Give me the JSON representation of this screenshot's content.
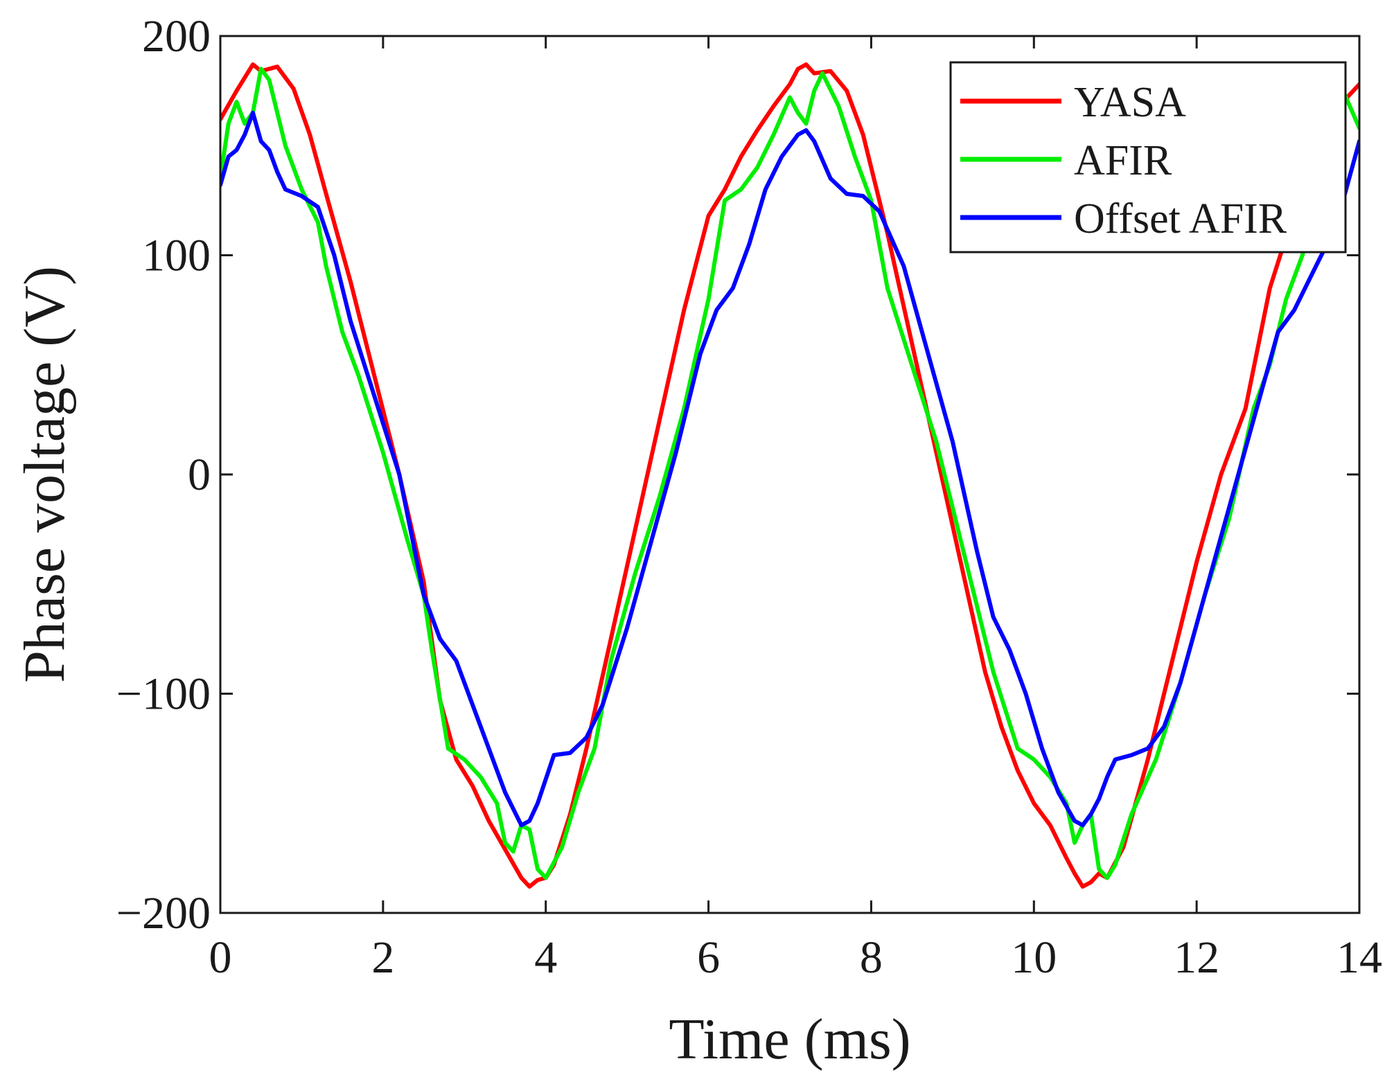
{
  "chart_data": {
    "type": "line",
    "xlabel": "Time (ms)",
    "ylabel": "Phase voltage (V)",
    "xlim": [
      0,
      14
    ],
    "ylim": [
      -200,
      200
    ],
    "xticks": [
      0,
      2,
      4,
      6,
      8,
      10,
      12,
      14
    ],
    "xtick_labels": [
      "0",
      "2",
      "4",
      "6",
      "8",
      "10",
      "12",
      "14"
    ],
    "yticks": [
      -200,
      -100,
      0,
      100,
      200
    ],
    "ytick_labels": [
      "−200",
      "−100",
      "0",
      "100",
      "200"
    ],
    "grid": false,
    "legend_position": "top-right",
    "series": [
      {
        "name": "YASA",
        "color": "#ff0000",
        "x": [
          0,
          0.2,
          0.4,
          0.5,
          0.7,
          0.9,
          1.1,
          1.3,
          1.6,
          1.9,
          2.2,
          2.5,
          2.7,
          2.9,
          3.1,
          3.3,
          3.5,
          3.7,
          3.8,
          3.9,
          4.0,
          4.1,
          4.3,
          4.5,
          4.8,
          5.1,
          5.4,
          5.7,
          6.0,
          6.2,
          6.4,
          6.6,
          6.8,
          7.0,
          7.1,
          7.2,
          7.3,
          7.5,
          7.7,
          7.9,
          8.2,
          8.5,
          8.8,
          9.1,
          9.4,
          9.6,
          9.8,
          10.0,
          10.2,
          10.4,
          10.5,
          10.6,
          10.7,
          10.8,
          10.9,
          11.1,
          11.4,
          11.7,
          12.0,
          12.3,
          12.6,
          12.9,
          13.2,
          13.5,
          13.8,
          14.0
        ],
        "y": [
          162,
          175,
          187,
          184,
          186,
          176,
          155,
          128,
          88,
          44,
          0,
          -49,
          -103,
          -130,
          -142,
          -158,
          -171,
          -184,
          -188,
          -185,
          -184,
          -178,
          -155,
          -125,
          -75,
          -25,
          25,
          75,
          118,
          130,
          145,
          157,
          168,
          178,
          185,
          187,
          183,
          184,
          175,
          155,
          110,
          60,
          10,
          -40,
          -90,
          -115,
          -135,
          -150,
          -160,
          -175,
          -182,
          -188,
          -186,
          -182,
          -184,
          -170,
          -130,
          -85,
          -40,
          0,
          30,
          85,
          120,
          160,
          170,
          178
        ]
      },
      {
        "name": "AFIR",
        "color": "#00ee00",
        "x": [
          0,
          0.1,
          0.2,
          0.3,
          0.4,
          0.5,
          0.6,
          0.8,
          1.0,
          1.2,
          1.3,
          1.5,
          1.7,
          2.0,
          2.3,
          2.5,
          2.6,
          2.8,
          3.0,
          3.2,
          3.4,
          3.5,
          3.6,
          3.7,
          3.8,
          3.9,
          4.0,
          4.2,
          4.4,
          4.6,
          4.8,
          5.1,
          5.4,
          5.7,
          6.0,
          6.2,
          6.4,
          6.6,
          6.8,
          7.0,
          7.1,
          7.2,
          7.3,
          7.4,
          7.6,
          7.8,
          8.0,
          8.2,
          8.5,
          8.8,
          9.1,
          9.3,
          9.5,
          9.8,
          10.0,
          10.2,
          10.4,
          10.5,
          10.6,
          10.7,
          10.8,
          10.9,
          11.0,
          11.2,
          11.5,
          11.8,
          12.1,
          12.4,
          12.7,
          12.9,
          13.1,
          13.3,
          13.5,
          13.8,
          14.0
        ],
        "y": [
          135,
          160,
          170,
          160,
          165,
          185,
          180,
          150,
          130,
          115,
          95,
          65,
          45,
          10,
          -30,
          -55,
          -80,
          -125,
          -130,
          -138,
          -150,
          -168,
          -172,
          -160,
          -162,
          -180,
          -184,
          -170,
          -145,
          -125,
          -85,
          -45,
          -10,
          30,
          80,
          125,
          130,
          140,
          155,
          172,
          165,
          160,
          175,
          183,
          168,
          145,
          125,
          85,
          50,
          15,
          -30,
          -60,
          -90,
          -125,
          -130,
          -138,
          -150,
          -168,
          -160,
          -155,
          -180,
          -184,
          -178,
          -155,
          -130,
          -95,
          -55,
          -20,
          30,
          50,
          80,
          100,
          130,
          175,
          158
        ]
      },
      {
        "name": "Offset AFIR",
        "color": "#0000ff",
        "x": [
          0,
          0.1,
          0.2,
          0.3,
          0.4,
          0.5,
          0.6,
          0.7,
          0.8,
          1.0,
          1.2,
          1.4,
          1.6,
          1.9,
          2.2,
          2.5,
          2.7,
          2.9,
          3.1,
          3.3,
          3.5,
          3.7,
          3.8,
          3.9,
          4.1,
          4.3,
          4.5,
          4.7,
          5.0,
          5.3,
          5.6,
          5.9,
          6.1,
          6.3,
          6.5,
          6.7,
          6.9,
          7.1,
          7.2,
          7.3,
          7.5,
          7.7,
          7.9,
          8.1,
          8.4,
          8.7,
          9.0,
          9.3,
          9.5,
          9.7,
          9.9,
          10.1,
          10.3,
          10.5,
          10.6,
          10.7,
          10.8,
          10.9,
          11.0,
          11.2,
          11.4,
          11.6,
          11.8,
          12.1,
          12.4,
          12.7,
          13.0,
          13.2,
          13.4,
          13.6,
          13.8,
          14.0
        ],
        "y": [
          132,
          145,
          148,
          155,
          165,
          152,
          148,
          138,
          130,
          127,
          122,
          100,
          70,
          35,
          0,
          -55,
          -75,
          -85,
          -105,
          -125,
          -145,
          -160,
          -158,
          -150,
          -128,
          -127,
          -120,
          -105,
          -70,
          -30,
          10,
          55,
          75,
          85,
          105,
          130,
          145,
          155,
          157,
          152,
          135,
          128,
          127,
          120,
          95,
          55,
          15,
          -35,
          -65,
          -80,
          -100,
          -125,
          -145,
          -158,
          -160,
          -155,
          -148,
          -138,
          -130,
          -128,
          -125,
          -115,
          -95,
          -55,
          -15,
          25,
          65,
          75,
          90,
          105,
          125,
          152
        ]
      }
    ]
  }
}
